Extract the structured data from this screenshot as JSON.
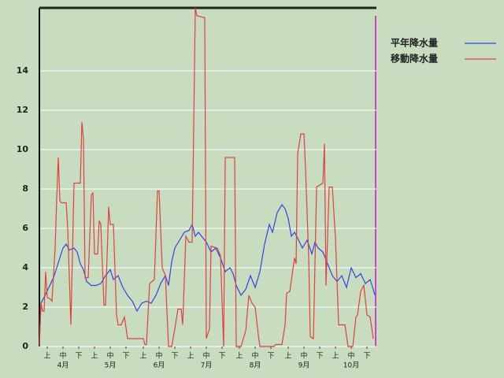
{
  "chart_data": {
    "type": "line",
    "xlim": [
      0,
      214
    ],
    "ylim": [
      0,
      17.2
    ],
    "yticks": [
      0,
      2,
      4,
      6,
      8,
      10,
      12,
      14
    ],
    "grid": true,
    "legend": "top-right",
    "xticks": [
      {
        "value": 5,
        "label": "上"
      },
      {
        "value": 15,
        "label": "中"
      },
      {
        "value": 25,
        "label": "下"
      },
      {
        "value": 35,
        "label": "上"
      },
      {
        "value": 45,
        "label": "中"
      },
      {
        "value": 55,
        "label": "下"
      },
      {
        "value": 66,
        "label": "上"
      },
      {
        "value": 76,
        "label": "中"
      },
      {
        "value": 86,
        "label": "下"
      },
      {
        "value": 96,
        "label": "上"
      },
      {
        "value": 106,
        "label": "中"
      },
      {
        "value": 116,
        "label": "下"
      },
      {
        "value": 127,
        "label": "上"
      },
      {
        "value": 137,
        "label": "中"
      },
      {
        "value": 147,
        "label": "下"
      },
      {
        "value": 158,
        "label": "上"
      },
      {
        "value": 168,
        "label": "中"
      },
      {
        "value": 178,
        "label": "下"
      },
      {
        "value": 188,
        "label": "上"
      },
      {
        "value": 198,
        "label": "中"
      },
      {
        "value": 208,
        "label": "下"
      }
    ],
    "month_labels": [
      {
        "value": 15,
        "label": "4月"
      },
      {
        "value": 45,
        "label": "5月"
      },
      {
        "value": 76,
        "label": "6月"
      },
      {
        "value": 106,
        "label": "7月"
      },
      {
        "value": 137,
        "label": "8月"
      },
      {
        "value": 168,
        "label": "9月"
      },
      {
        "value": 198,
        "label": "10月"
      }
    ],
    "series": [
      {
        "name": "平年降水量",
        "color": "#3344dd",
        "x": [
          0,
          1,
          3,
          6,
          9,
          11,
          13,
          15,
          17,
          19,
          22,
          24,
          26,
          28,
          30,
          33,
          36,
          39,
          42,
          45,
          47,
          50,
          53,
          56,
          59,
          62,
          65,
          68,
          71,
          74,
          77,
          80,
          82,
          84,
          86,
          89,
          92,
          95,
          97,
          99,
          101,
          103,
          106,
          109,
          112,
          115,
          118,
          121,
          123,
          125,
          128,
          131,
          134,
          137,
          140,
          143,
          146,
          148,
          151,
          154,
          156,
          158,
          160,
          162,
          164,
          167,
          170,
          173,
          175,
          177,
          180,
          183,
          186,
          189,
          192,
          195,
          198,
          201,
          204,
          207,
          210,
          212,
          213
        ],
        "values": [
          0,
          2.2,
          2.5,
          3.0,
          3.5,
          4.0,
          4.5,
          5.0,
          5.2,
          4.9,
          5.0,
          4.8,
          4.2,
          3.9,
          3.3,
          3.1,
          3.1,
          3.2,
          3.6,
          3.9,
          3.4,
          3.6,
          3.0,
          2.6,
          2.3,
          1.8,
          2.2,
          2.3,
          2.2,
          2.6,
          3.2,
          3.6,
          3.1,
          4.3,
          5.0,
          5.4,
          5.8,
          5.9,
          6.2,
          5.6,
          5.8,
          5.6,
          5.3,
          4.8,
          5.0,
          4.5,
          3.8,
          4.0,
          3.7,
          3.1,
          2.6,
          2.9,
          3.6,
          3.0,
          3.8,
          5.2,
          6.2,
          5.8,
          6.8,
          7.2,
          7.0,
          6.5,
          5.6,
          5.8,
          5.5,
          5.0,
          5.4,
          4.7,
          5.3,
          5.0,
          4.8,
          4.2,
          3.6,
          3.3,
          3.6,
          3.0,
          4.0,
          3.5,
          3.7,
          3.2,
          3.4,
          2.9,
          2.6
        ]
      },
      {
        "name": "移動降水量",
        "color": "#e04040",
        "x": [
          0,
          1,
          2,
          3,
          4,
          5,
          7,
          8,
          10,
          11,
          12,
          13,
          14,
          17,
          18,
          20,
          22,
          26,
          27,
          28,
          29,
          31,
          33,
          34,
          35,
          37,
          38,
          39,
          41,
          42,
          44,
          45,
          47,
          49,
          50,
          52,
          54,
          56,
          66,
          67,
          68,
          70,
          73,
          75,
          76,
          78,
          80,
          82,
          84,
          86,
          88,
          90,
          91,
          93,
          95,
          97,
          99,
          100,
          105,
          106,
          108,
          109,
          113,
          115,
          117,
          118,
          124,
          125,
          128,
          131,
          133,
          135,
          137,
          138,
          139,
          140,
          149,
          150,
          154,
          156,
          157,
          159,
          162,
          163,
          164,
          166,
          168,
          169,
          171,
          172,
          174,
          176,
          178,
          180,
          181,
          182,
          184,
          186,
          188,
          190,
          194,
          196,
          199,
          201,
          202,
          204,
          206,
          208,
          210,
          212
        ],
        "values": [
          0,
          2.2,
          1.8,
          1.8,
          3.8,
          2.5,
          2.4,
          2.3,
          5,
          7.5,
          9.6,
          7.4,
          7.3,
          7.3,
          6,
          1.1,
          8.3,
          8.3,
          11.4,
          10.5,
          3.5,
          3.5,
          7.7,
          7.8,
          4.7,
          4.7,
          6.4,
          6.2,
          2.1,
          2.1,
          7.1,
          6.2,
          6.2,
          1.6,
          1.1,
          1.1,
          1.5,
          0.4,
          0.4,
          0.1,
          0.1,
          3.2,
          3.4,
          7.9,
          7.9,
          4.0,
          3.6,
          0,
          0,
          0.9,
          1.9,
          1.9,
          1.1,
          5.6,
          5.3,
          5.3,
          17.2,
          16.8,
          16.7,
          0.4,
          0.9,
          5.1,
          5.0,
          4.6,
          0,
          9.6,
          9.6,
          0,
          0,
          0.8,
          2.6,
          2.2,
          2.0,
          1.3,
          0.6,
          0,
          0,
          0.1,
          0.1,
          1.1,
          2.7,
          2.8,
          4.5,
          4.2,
          9.8,
          10.8,
          10.8,
          9,
          4.5,
          0.5,
          0.4,
          8.1,
          8.2,
          8.3,
          10.3,
          3.1,
          8.1,
          8.1,
          5.5,
          1.1,
          1.1,
          0,
          0,
          1.5,
          1.6,
          2.8,
          3.1,
          1.6,
          1.5,
          0.4
        ]
      }
    ]
  }
}
